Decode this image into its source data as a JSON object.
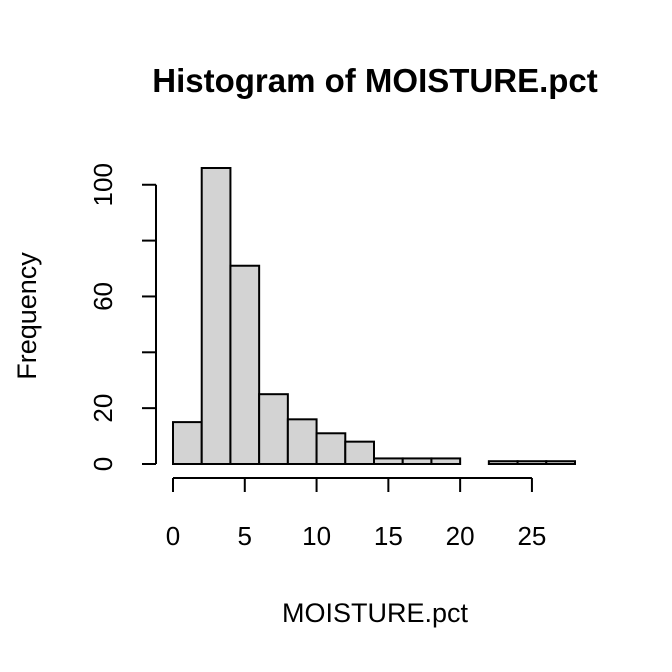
{
  "chart_data": {
    "type": "bar",
    "title": "Histogram of MOISTURE.pct",
    "xlabel": "MOISTURE.pct",
    "ylabel": "Frequency",
    "bins": [
      {
        "start": 0,
        "end": 2,
        "count": 15
      },
      {
        "start": 2,
        "end": 4,
        "count": 106
      },
      {
        "start": 4,
        "end": 6,
        "count": 71
      },
      {
        "start": 6,
        "end": 8,
        "count": 25
      },
      {
        "start": 8,
        "end": 10,
        "count": 16
      },
      {
        "start": 10,
        "end": 12,
        "count": 11
      },
      {
        "start": 12,
        "end": 14,
        "count": 8
      },
      {
        "start": 14,
        "end": 16,
        "count": 2
      },
      {
        "start": 16,
        "end": 18,
        "count": 2
      },
      {
        "start": 18,
        "end": 20,
        "count": 2
      },
      {
        "start": 20,
        "end": 22,
        "count": 0
      },
      {
        "start": 22,
        "end": 24,
        "count": 1
      },
      {
        "start": 24,
        "end": 26,
        "count": 1
      },
      {
        "start": 26,
        "end": 28,
        "count": 1
      }
    ],
    "xlim": [
      0,
      28
    ],
    "ylim": [
      0,
      106
    ],
    "xticks": [
      0,
      5,
      10,
      15,
      20,
      25
    ],
    "yticks": [
      0,
      20,
      40,
      60,
      80,
      100
    ],
    "ytick_labels": [
      "0",
      "20",
      "",
      "60",
      "",
      "100"
    ],
    "grid": false,
    "bar_color": "#d3d3d3",
    "edge_color": "#000000"
  }
}
